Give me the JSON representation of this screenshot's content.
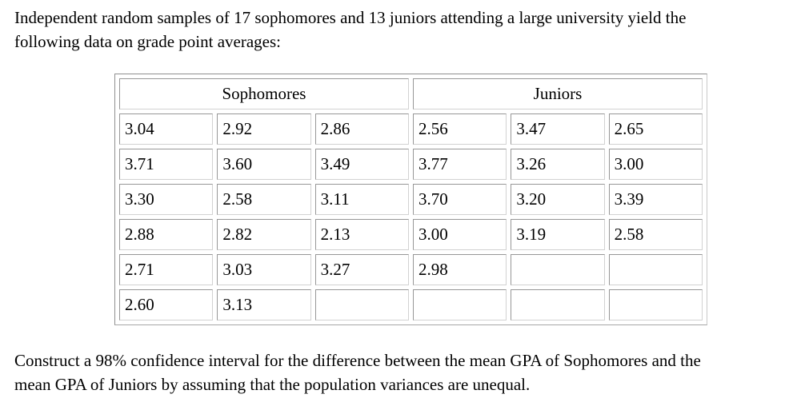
{
  "intro": {
    "line1": "Independent random samples of 17 sophomores and 13 juniors attending a large university yield the",
    "line2": "following data on grade point averages:"
  },
  "table": {
    "headers": {
      "sophomores": "Sophomores",
      "juniors": "Juniors"
    },
    "rows": [
      [
        "3.04",
        "2.92",
        "2.86",
        "2.56",
        "3.47",
        "2.65"
      ],
      [
        "3.71",
        "3.60",
        "3.49",
        "3.77",
        "3.26",
        "3.00"
      ],
      [
        "3.30",
        "2.58",
        "3.11",
        "3.70",
        "3.20",
        "3.39"
      ],
      [
        "2.88",
        "2.82",
        "2.13",
        "3.00",
        "3.19",
        "2.58"
      ],
      [
        "2.71",
        "3.03",
        "3.27",
        "2.98",
        "",
        ""
      ],
      [
        "2.60",
        "3.13",
        "",
        "",
        "",
        ""
      ]
    ]
  },
  "question": {
    "line1": "Construct a 98% confidence interval for the difference between the mean GPA of Sophomores and the",
    "line2": "mean GPA of Juniors by assuming that the population variances are unequal."
  },
  "colors": {
    "text": "#000000",
    "cell_border": "#979797",
    "table_border": "#8f8f8f",
    "background": "#ffffff"
  }
}
